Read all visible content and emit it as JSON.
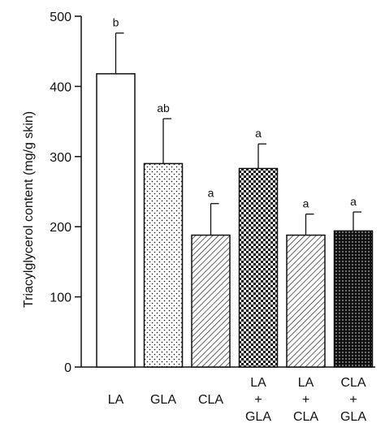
{
  "chart_data": {
    "type": "bar",
    "ylabel": "Triacylglycerol content (mg/g skin)",
    "ylim": [
      0,
      500
    ],
    "yticks": [
      0,
      100,
      200,
      300,
      400,
      500
    ],
    "grid": false,
    "categories": [
      {
        "lines": [
          "LA"
        ]
      },
      {
        "lines": [
          "GLA"
        ]
      },
      {
        "lines": [
          "CLA"
        ]
      },
      {
        "lines": [
          "LA",
          "+",
          "GLA"
        ]
      },
      {
        "lines": [
          "LA",
          "+",
          "CLA"
        ]
      },
      {
        "lines": [
          "CLA",
          "+",
          "GLA"
        ]
      }
    ],
    "values": [
      418,
      290,
      188,
      283,
      188,
      194
    ],
    "error_upper": [
      58,
      64,
      45,
      35,
      30,
      27
    ],
    "significance_labels": [
      "b",
      "ab",
      "a",
      "a",
      "a",
      "a"
    ],
    "bar_fills": [
      "white",
      "sparse-dots",
      "diagonal-lines",
      "checker",
      "diagonal-lines",
      "dense-dots"
    ],
    "colors": {
      "ink": "#111111",
      "background": "#ffffff"
    }
  }
}
